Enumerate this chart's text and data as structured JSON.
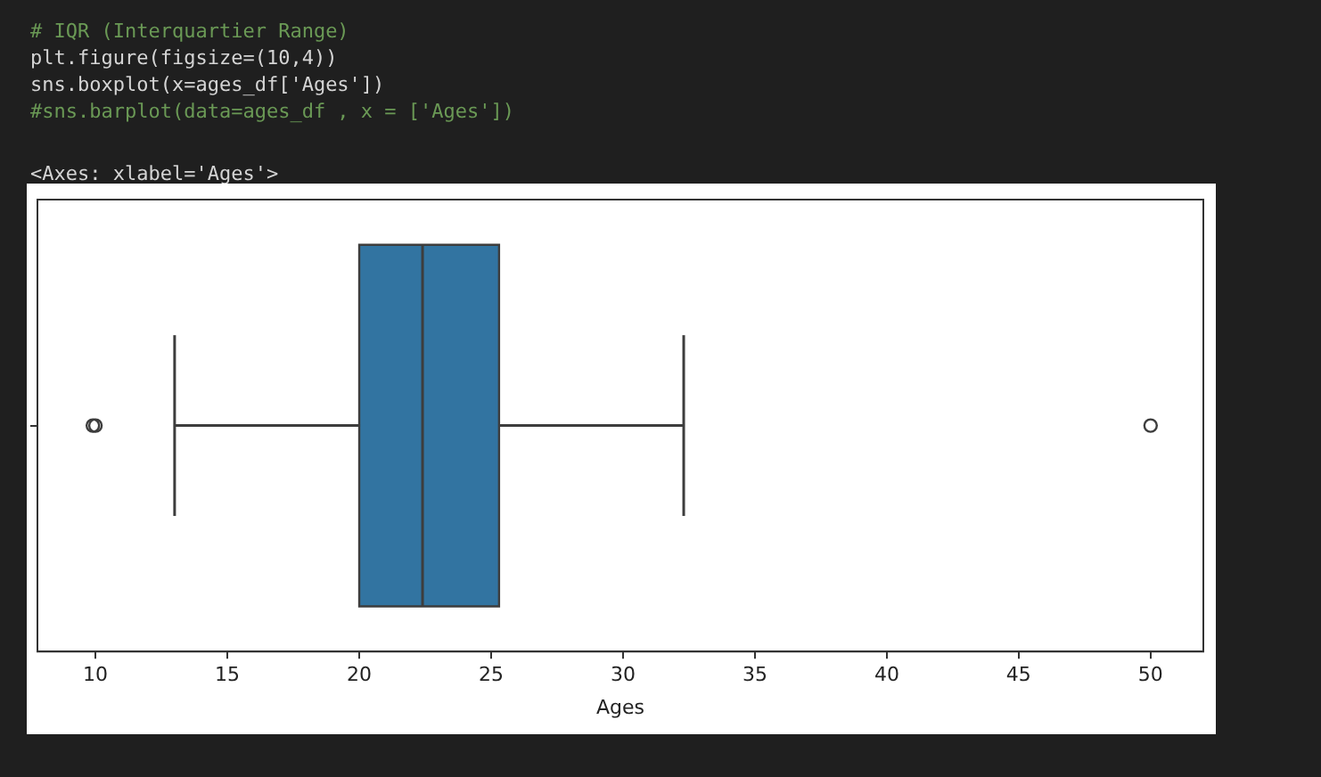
{
  "chart_data": {
    "type": "box",
    "orientation": "horizontal",
    "categories": [
      null
    ],
    "boxes": [
      {
        "low": 13,
        "q1": 20,
        "median": 22.4,
        "q3": 25.3,
        "high": 32.3,
        "outliers": [
          9.9,
          10,
          50
        ]
      }
    ],
    "color": "#3274a1",
    "xlabel": "Ages",
    "xlim": [
      7.8,
      52
    ],
    "xticks": [
      10,
      15,
      20,
      25,
      30,
      35,
      40,
      45,
      50
    ],
    "tick_labels": "x",
    "grid": false,
    "legend": false,
    "annotations": [
      "# IQR (Interquartier Range)",
      "plt.figure(figsize=(10,4))",
      "sns.boxplot(x=ages_df['Ages'])",
      "#sns.barplot(data=ages_df , x = ['Ages'])",
      "<Axes: xlabel='Ages'>"
    ]
  }
}
